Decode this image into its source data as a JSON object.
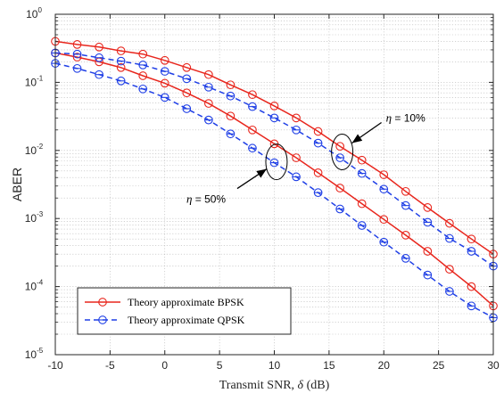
{
  "chart_data": {
    "type": "line",
    "title": "",
    "xlabel": "Transmit SNR, ",
    "xlabel_symbol": "δ",
    "xlabel_unit": " (dB)",
    "ylabel": "ABER",
    "xlim": [
      -10,
      30
    ],
    "ylim_log10": [
      -5,
      0
    ],
    "yscale": "log",
    "grid": true,
    "legend_position": "bottom-left",
    "x_ticks": [
      "-10",
      "-5",
      "0",
      "5",
      "10",
      "15",
      "20",
      "25",
      "30"
    ],
    "y_ticks": [
      {
        "base": "10",
        "exp": "0"
      },
      {
        "base": "10",
        "exp": "-1"
      },
      {
        "base": "10",
        "exp": "-2"
      },
      {
        "base": "10",
        "exp": "-3"
      },
      {
        "base": "10",
        "exp": "-4"
      },
      {
        "base": "10",
        "exp": "-5"
      }
    ],
    "x": [
      -10,
      -8,
      -6,
      -4,
      -2,
      0,
      2,
      4,
      6,
      8,
      10,
      12,
      14,
      16,
      18,
      20,
      22,
      24,
      26,
      28,
      30
    ],
    "series": [
      {
        "name": "Theory approximate BPSK",
        "color": "#e8261d",
        "style": "solid",
        "marker": "circle",
        "curves": [
          {
            "group": "η = 10%",
            "values": [
              0.4,
              0.36,
              0.33,
              0.29,
              0.26,
              0.21,
              0.165,
              0.13,
              0.092,
              0.066,
              0.045,
              0.03,
              0.019,
              0.0115,
              0.0072,
              0.0044,
              0.0025,
              0.00145,
              0.00085,
              0.0005,
              0.0003
            ]
          },
          {
            "group": "η = 50%",
            "values": [
              0.27,
              0.235,
              0.2,
              0.165,
              0.125,
              0.097,
              0.07,
              0.049,
              0.032,
              0.02,
              0.0125,
              0.0078,
              0.0047,
              0.0028,
              0.00165,
              0.00097,
              0.00057,
              0.00033,
              0.00018,
              0.0001,
              5.2e-05
            ]
          }
        ]
      },
      {
        "name": "Theory approximate QPSK",
        "color": "#1f3fe6",
        "style": "dashed",
        "marker": "circle-with-bar",
        "curves": [
          {
            "group": "η = 10%",
            "values": [
              0.27,
              0.26,
              0.23,
              0.205,
              0.18,
              0.145,
              0.113,
              0.085,
              0.063,
              0.044,
              0.03,
              0.02,
              0.0128,
              0.0078,
              0.0046,
              0.0027,
              0.00155,
              0.00088,
              0.00051,
              0.00033,
              0.0002
            ]
          },
          {
            "group": "η = 50%",
            "values": [
              0.19,
              0.16,
              0.13,
              0.105,
              0.08,
              0.06,
              0.041,
              0.028,
              0.0175,
              0.0108,
              0.0066,
              0.0041,
              0.0024,
              0.00138,
              0.00079,
              0.00045,
              0.00026,
              0.000148,
              8.5e-05,
              5.2e-05,
              3.5e-05
            ]
          }
        ]
      }
    ],
    "annotations": [
      {
        "symbol": "η",
        "text": " = 10%",
        "target": [
          16.2,
          0.0095
        ]
      },
      {
        "symbol": "η",
        "text": " = 50%",
        "target": [
          10.2,
          0.0068
        ]
      }
    ]
  }
}
